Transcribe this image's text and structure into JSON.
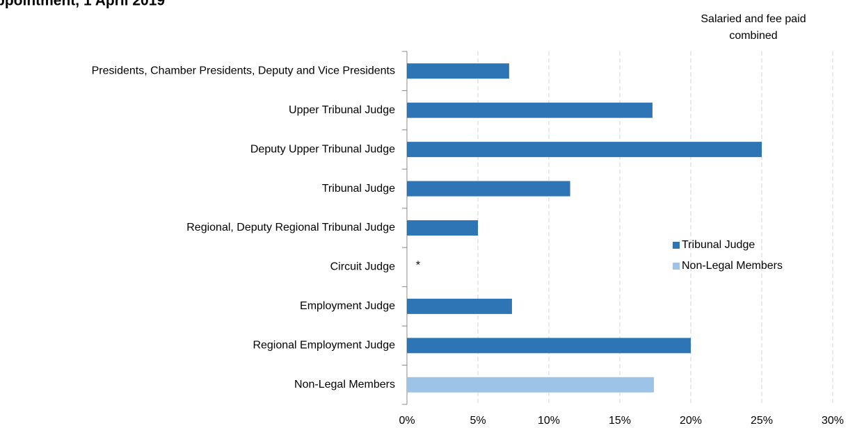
{
  "chart_data": {
    "type": "barh",
    "title": "ppointment, 1 April 2019",
    "annotation": "Salaried and fee paid combined",
    "categories": [
      "Presidents, Chamber Presidents, Deputy and Vice Presidents",
      "Upper Tribunal Judge",
      "Deputy Upper Tribunal Judge",
      "Tribunal Judge",
      "Regional, Deputy Regional Tribunal Judge",
      "Circuit Judge",
      "Employment Judge",
      "Regional Employment Judge",
      "Non-Legal Members"
    ],
    "series": [
      {
        "name": "Tribunal Judge",
        "color": "#2e75b6",
        "values": [
          7.2,
          17.3,
          25,
          11.5,
          5,
          null,
          7.4,
          20,
          null
        ],
        "value_labels": [
          null,
          null,
          null,
          null,
          null,
          "*",
          null,
          null,
          null
        ]
      },
      {
        "name": "Non-Legal Members",
        "color": "#9dc3e6",
        "values": [
          null,
          null,
          null,
          null,
          null,
          null,
          null,
          null,
          17.4
        ]
      }
    ],
    "xlim": [
      0,
      30
    ],
    "xticks": [
      {
        "value": 0,
        "label": "0%"
      },
      {
        "value": 5,
        "label": "5%"
      },
      {
        "value": 10,
        "label": "10%"
      },
      {
        "value": 15,
        "label": "15%"
      },
      {
        "value": 20,
        "label": "20%"
      },
      {
        "value": 25,
        "label": "25%"
      },
      {
        "value": 30,
        "label": "30%"
      }
    ],
    "grid": true,
    "legend": "right"
  }
}
